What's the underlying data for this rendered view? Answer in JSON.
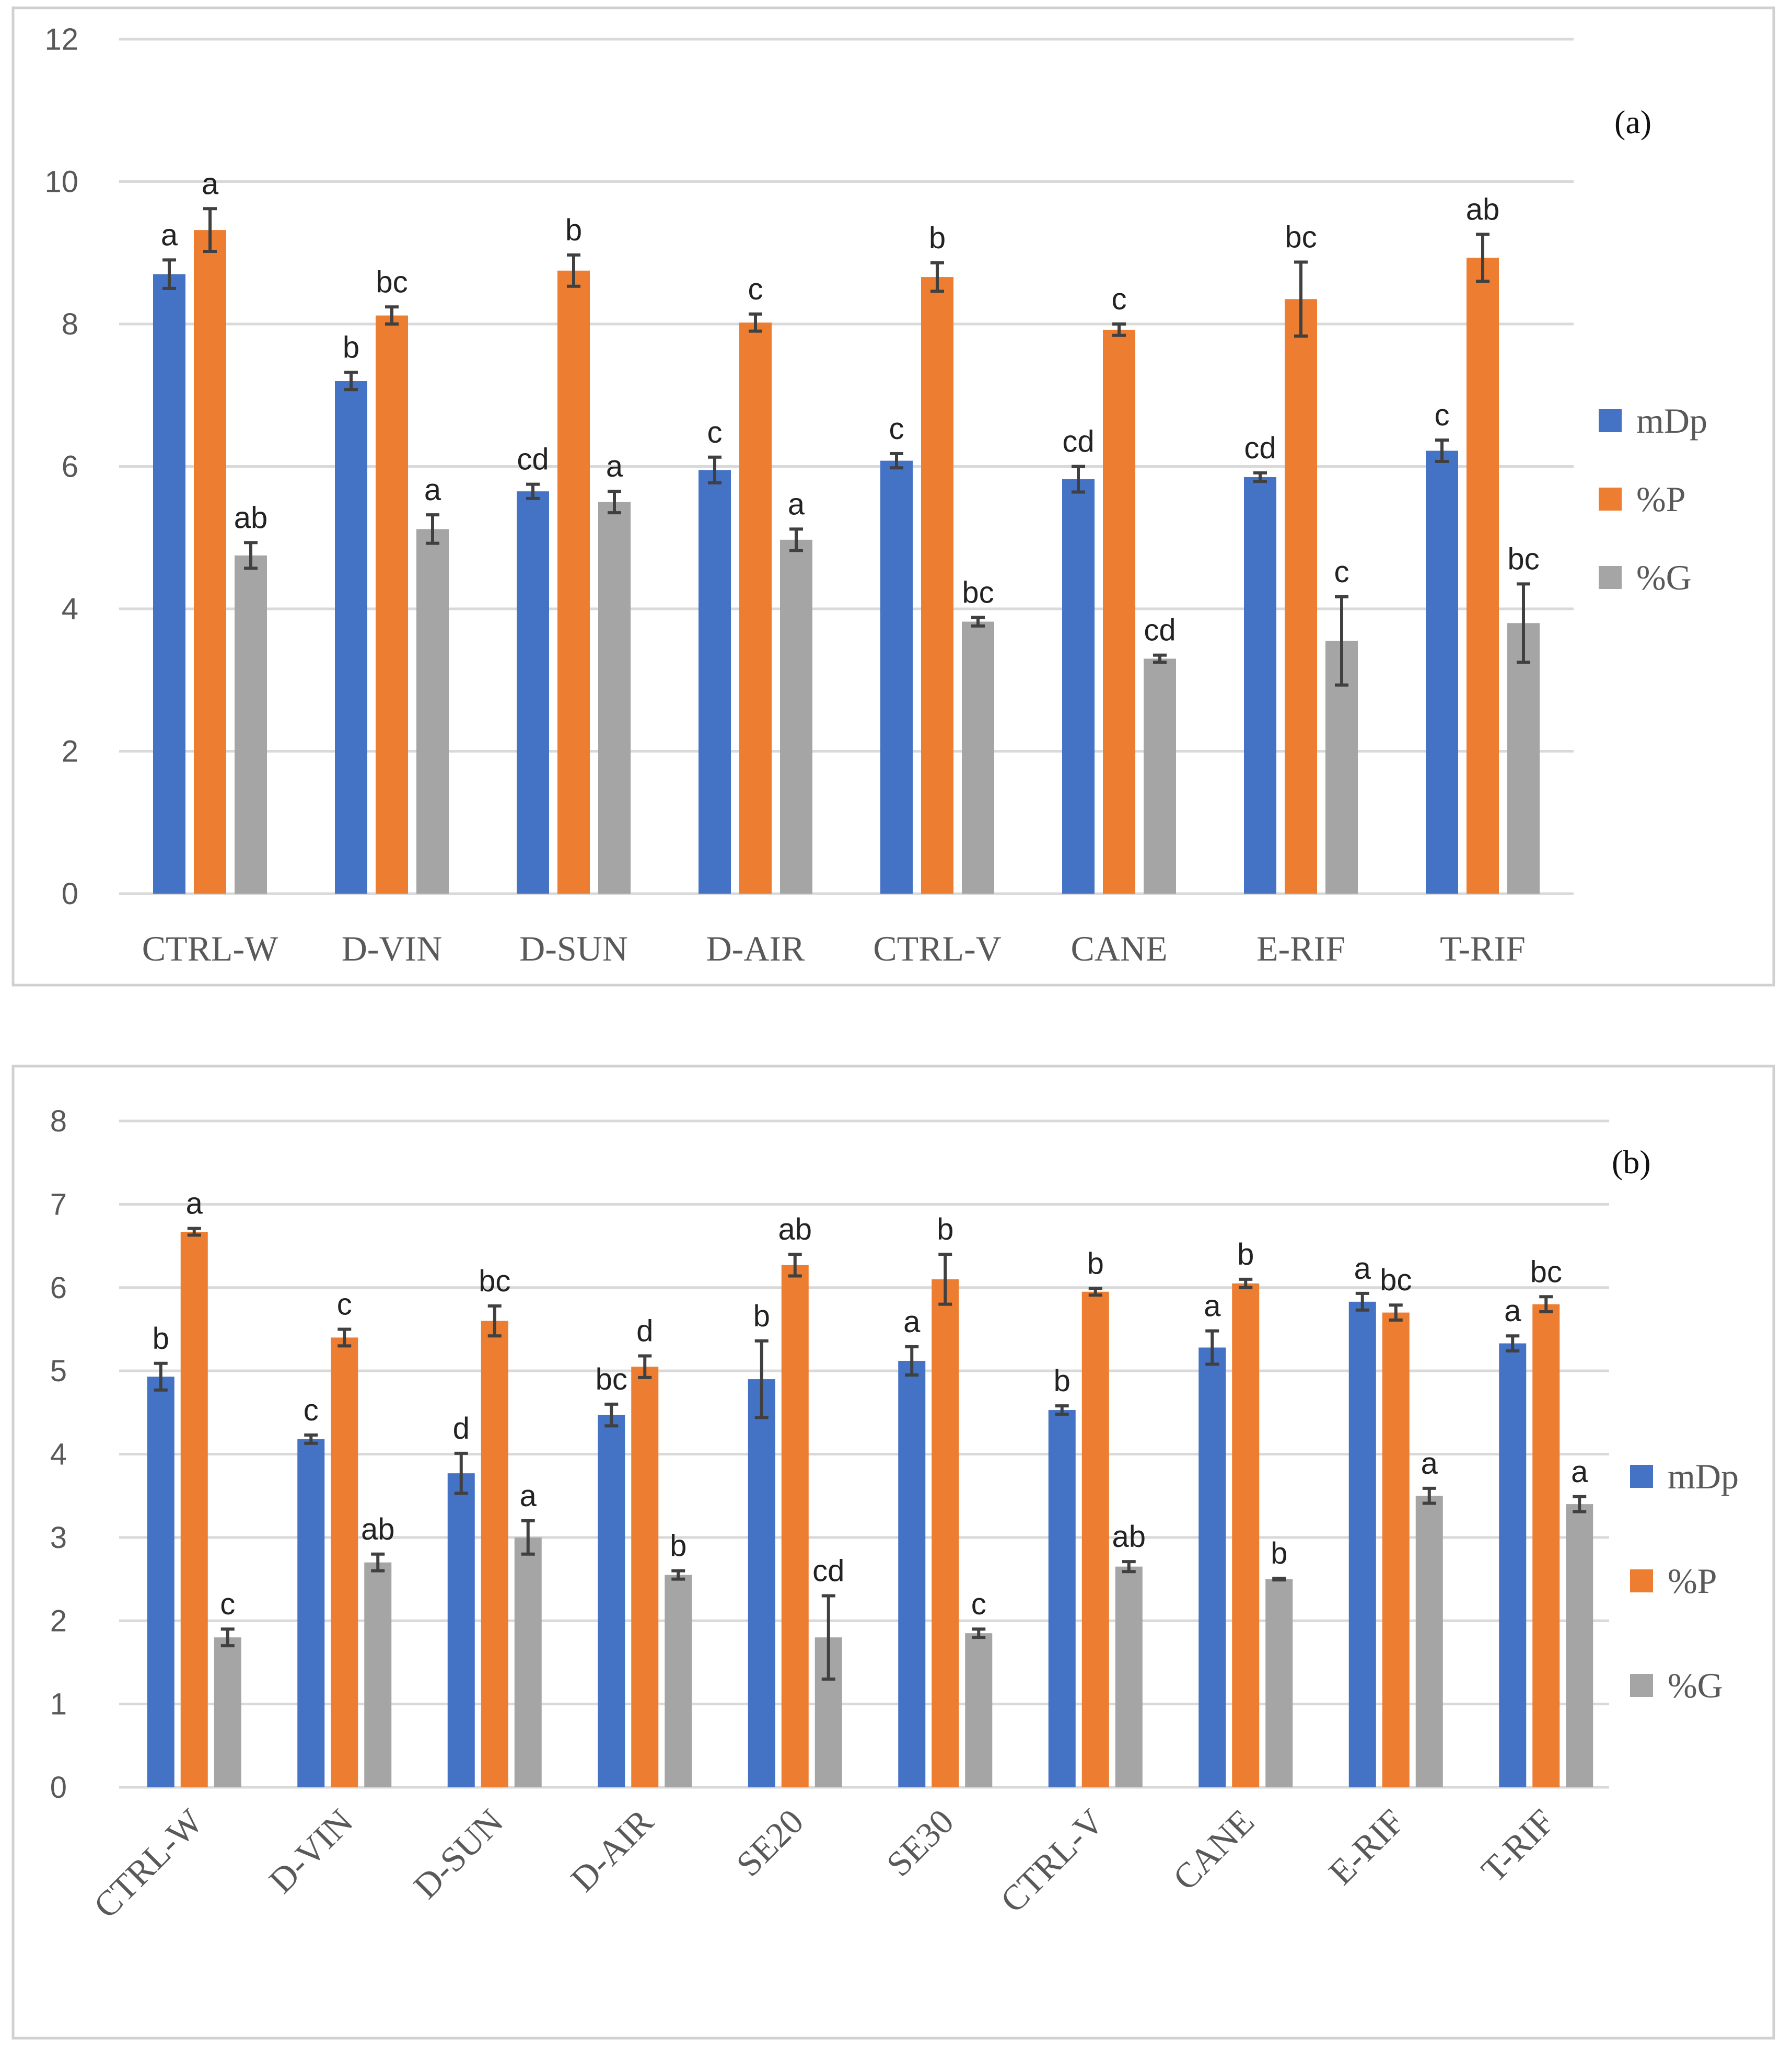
{
  "colors": {
    "mDp": "#4472c4",
    "%P": "#ed7d31",
    "%G": "#a5a5a5"
  },
  "chart_data": [
    {
      "type": "bar",
      "panel_label": "(a)",
      "categories": [
        "CTRL-W",
        "D-VIN",
        "D-SUN",
        "D-AIR",
        "CTRL-V",
        "CANE",
        "E-RIF",
        "T-RIF"
      ],
      "y_ticks": [
        "0",
        "2",
        "4",
        "6",
        "8",
        "10",
        "12"
      ],
      "ylim": [
        0,
        12
      ],
      "legend": [
        "mDp",
        "%P",
        "%G"
      ],
      "legend_position": "right",
      "series": [
        {
          "name": "mDp",
          "values": [
            8.7,
            7.2,
            5.65,
            5.95,
            6.08,
            5.82,
            5.85,
            6.22
          ],
          "errors": [
            0.2,
            0.12,
            0.1,
            0.18,
            0.1,
            0.18,
            0.06,
            0.15
          ],
          "letters": [
            "a",
            "b",
            "cd",
            "c",
            "c",
            "cd",
            "cd",
            "c"
          ]
        },
        {
          "name": "%P",
          "values": [
            9.32,
            8.12,
            8.75,
            8.02,
            8.66,
            7.92,
            8.35,
            8.93
          ],
          "errors": [
            0.3,
            0.12,
            0.22,
            0.12,
            0.2,
            0.08,
            0.52,
            0.33
          ],
          "letters": [
            "a",
            "bc",
            "b",
            "c",
            "b",
            "c",
            "bc",
            "ab"
          ]
        },
        {
          "name": "%G",
          "values": [
            4.75,
            5.12,
            5.5,
            4.97,
            3.82,
            3.3,
            3.55,
            3.8
          ],
          "errors": [
            0.18,
            0.2,
            0.15,
            0.15,
            0.06,
            0.05,
            0.62,
            0.55
          ],
          "letters": [
            "ab",
            "a",
            "a",
            "a",
            "bc",
            "cd",
            "c",
            "bc"
          ]
        }
      ]
    },
    {
      "type": "bar",
      "panel_label": "(b)",
      "categories": [
        "CTRL-W",
        "D-VIN",
        "D-SUN",
        "D-AIR",
        "SE20",
        "SE30",
        "CTRL-V",
        "CANE",
        "E-RIF",
        "T-RIF"
      ],
      "y_ticks": [
        "0",
        "1",
        "2",
        "3",
        "4",
        "5",
        "6",
        "7",
        "8"
      ],
      "ylim": [
        0,
        8
      ],
      "legend": [
        "mDp",
        "%P",
        "%G"
      ],
      "legend_position": "right",
      "series": [
        {
          "name": "mDp",
          "values": [
            4.93,
            4.18,
            3.77,
            4.47,
            4.9,
            5.12,
            4.53,
            5.28,
            5.83,
            5.33
          ],
          "errors": [
            0.16,
            0.05,
            0.24,
            0.13,
            0.46,
            0.17,
            0.05,
            0.2,
            0.1,
            0.09
          ],
          "letters": [
            "b",
            "c",
            "d",
            "bc",
            "b",
            "a",
            "b",
            "a",
            "a",
            "a"
          ]
        },
        {
          "name": "%P",
          "values": [
            6.67,
            5.4,
            5.6,
            5.05,
            6.27,
            6.1,
            5.95,
            6.05,
            5.7,
            5.8
          ],
          "errors": [
            0.04,
            0.1,
            0.18,
            0.13,
            0.13,
            0.3,
            0.04,
            0.05,
            0.09,
            0.09
          ],
          "letters": [
            "a",
            "c",
            "bc",
            "d",
            "ab",
            "b",
            "b",
            "b",
            "bc",
            "bc"
          ]
        },
        {
          "name": "%G",
          "values": [
            1.8,
            2.7,
            3.0,
            2.55,
            1.8,
            1.85,
            2.65,
            2.5,
            3.5,
            3.4
          ],
          "errors": [
            0.1,
            0.1,
            0.2,
            0.05,
            0.5,
            0.05,
            0.06,
            0.01,
            0.09,
            0.09
          ],
          "letters": [
            "c",
            "ab",
            "a",
            "b",
            "cd",
            "c",
            "ab",
            "b",
            "a",
            "a"
          ]
        }
      ]
    }
  ]
}
